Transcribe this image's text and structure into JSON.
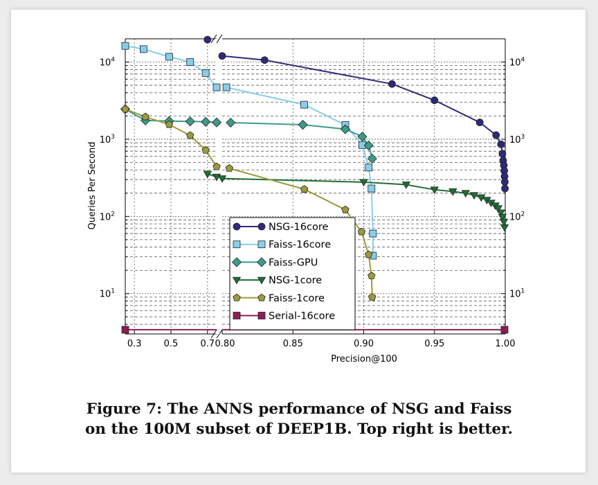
{
  "caption": {
    "line1": "Figure 7: The ANNS performance of NSG and Faiss",
    "line2": "on the 100M subset of DEEP1B. Top right is better."
  },
  "chart_data": {
    "type": "line",
    "xlabel": "Precision@100",
    "ylabel": "Queries Per Second",
    "y_scale": "log",
    "ylim": [
      3,
      20000
    ],
    "x_axis_broken": true,
    "x_left_segment": {
      "range": [
        0.25,
        0.75
      ],
      "ticks": [
        "0.3",
        "0.5",
        "0.7"
      ],
      "tick_values": [
        0.3,
        0.5,
        0.7
      ]
    },
    "x_right_segment": {
      "range": [
        0.8,
        1.0
      ],
      "ticks": [
        "0.80",
        "0.85",
        "0.90",
        "0.95",
        "1.00"
      ],
      "tick_values": [
        0.8,
        0.85,
        0.9,
        0.95,
        1.0
      ]
    },
    "y_ticks": [
      {
        "value": 10,
        "base": "10",
        "exp": "1"
      },
      {
        "value": 100,
        "base": "10",
        "exp": "2"
      },
      {
        "value": 1000,
        "base": "10",
        "exp": "3"
      },
      {
        "value": 10000,
        "base": "10",
        "exp": "4"
      }
    ],
    "grid": true,
    "legend_position": "lower-center",
    "series": [
      {
        "name": "NSG-16core",
        "color": "#2e2a7a",
        "marker": "circle",
        "points": [
          [
            0.7,
            19500
          ],
          [
            0.8,
            12000
          ],
          [
            0.83,
            10600
          ],
          [
            0.92,
            5200
          ],
          [
            0.95,
            3200
          ],
          [
            0.982,
            1650
          ],
          [
            0.9935,
            1130
          ],
          [
            0.997,
            860
          ],
          [
            0.998,
            650
          ],
          [
            0.9985,
            530
          ],
          [
            0.999,
            460
          ],
          [
            0.9993,
            390
          ],
          [
            0.9995,
            330
          ],
          [
            0.9997,
            280
          ],
          [
            0.9998,
            230
          ]
        ]
      },
      {
        "name": "Faiss-16core",
        "color": "#87ceeb",
        "marker": "square",
        "points": [
          [
            0.25,
            16200
          ],
          [
            0.35,
            14700
          ],
          [
            0.49,
            11700
          ],
          [
            0.605,
            10000
          ],
          [
            0.69,
            7200
          ],
          [
            0.75,
            4700
          ],
          [
            0.803,
            4700
          ],
          [
            0.858,
            2800
          ],
          [
            0.887,
            1530
          ],
          [
            0.899,
            840
          ],
          [
            0.9035,
            430
          ],
          [
            0.9055,
            230
          ],
          [
            0.9065,
            60
          ],
          [
            0.9065,
            31
          ]
        ]
      },
      {
        "name": "Faiss-GPU",
        "color": "#3d9b8a",
        "marker": "diamond",
        "points": [
          [
            0.25,
            2450
          ],
          [
            0.36,
            1750
          ],
          [
            0.49,
            1720
          ],
          [
            0.605,
            1700
          ],
          [
            0.69,
            1680
          ],
          [
            0.75,
            1650
          ],
          [
            0.806,
            1640
          ],
          [
            0.857,
            1540
          ],
          [
            0.887,
            1350
          ],
          [
            0.899,
            1080
          ],
          [
            0.9035,
            830
          ],
          [
            0.906,
            560
          ]
        ]
      },
      {
        "name": "NSG-1core",
        "color": "#1f6e37",
        "marker": "triangle-down",
        "points": [
          [
            0.7,
            355
          ],
          [
            0.75,
            325
          ],
          [
            0.8,
            310
          ],
          [
            0.9,
            278
          ],
          [
            0.93,
            258
          ],
          [
            0.95,
            222
          ],
          [
            0.963,
            210
          ],
          [
            0.972,
            200
          ],
          [
            0.978,
            188
          ],
          [
            0.983,
            176
          ],
          [
            0.987,
            163
          ],
          [
            0.99,
            150
          ],
          [
            0.993,
            138
          ],
          [
            0.995,
            127
          ],
          [
            0.997,
            112
          ],
          [
            0.998,
            98
          ],
          [
            0.999,
            85
          ],
          [
            0.9995,
            72
          ]
        ]
      },
      {
        "name": "Faiss-1core",
        "color": "#9b9b3d",
        "marker": "pentagon",
        "points": [
          [
            0.25,
            2450
          ],
          [
            0.36,
            1950
          ],
          [
            0.49,
            1550
          ],
          [
            0.605,
            1120
          ],
          [
            0.69,
            720
          ],
          [
            0.75,
            440
          ],
          [
            0.805,
            420
          ],
          [
            0.858,
            225
          ],
          [
            0.887,
            122
          ],
          [
            0.8985,
            63
          ],
          [
            0.9035,
            32
          ],
          [
            0.9055,
            17
          ],
          [
            0.906,
            9
          ]
        ]
      },
      {
        "name": "Serial-16core",
        "color": "#8b1f54",
        "marker": "square",
        "points": [
          [
            0.25,
            3.4
          ],
          [
            0.9995,
            3.4
          ]
        ]
      }
    ]
  }
}
